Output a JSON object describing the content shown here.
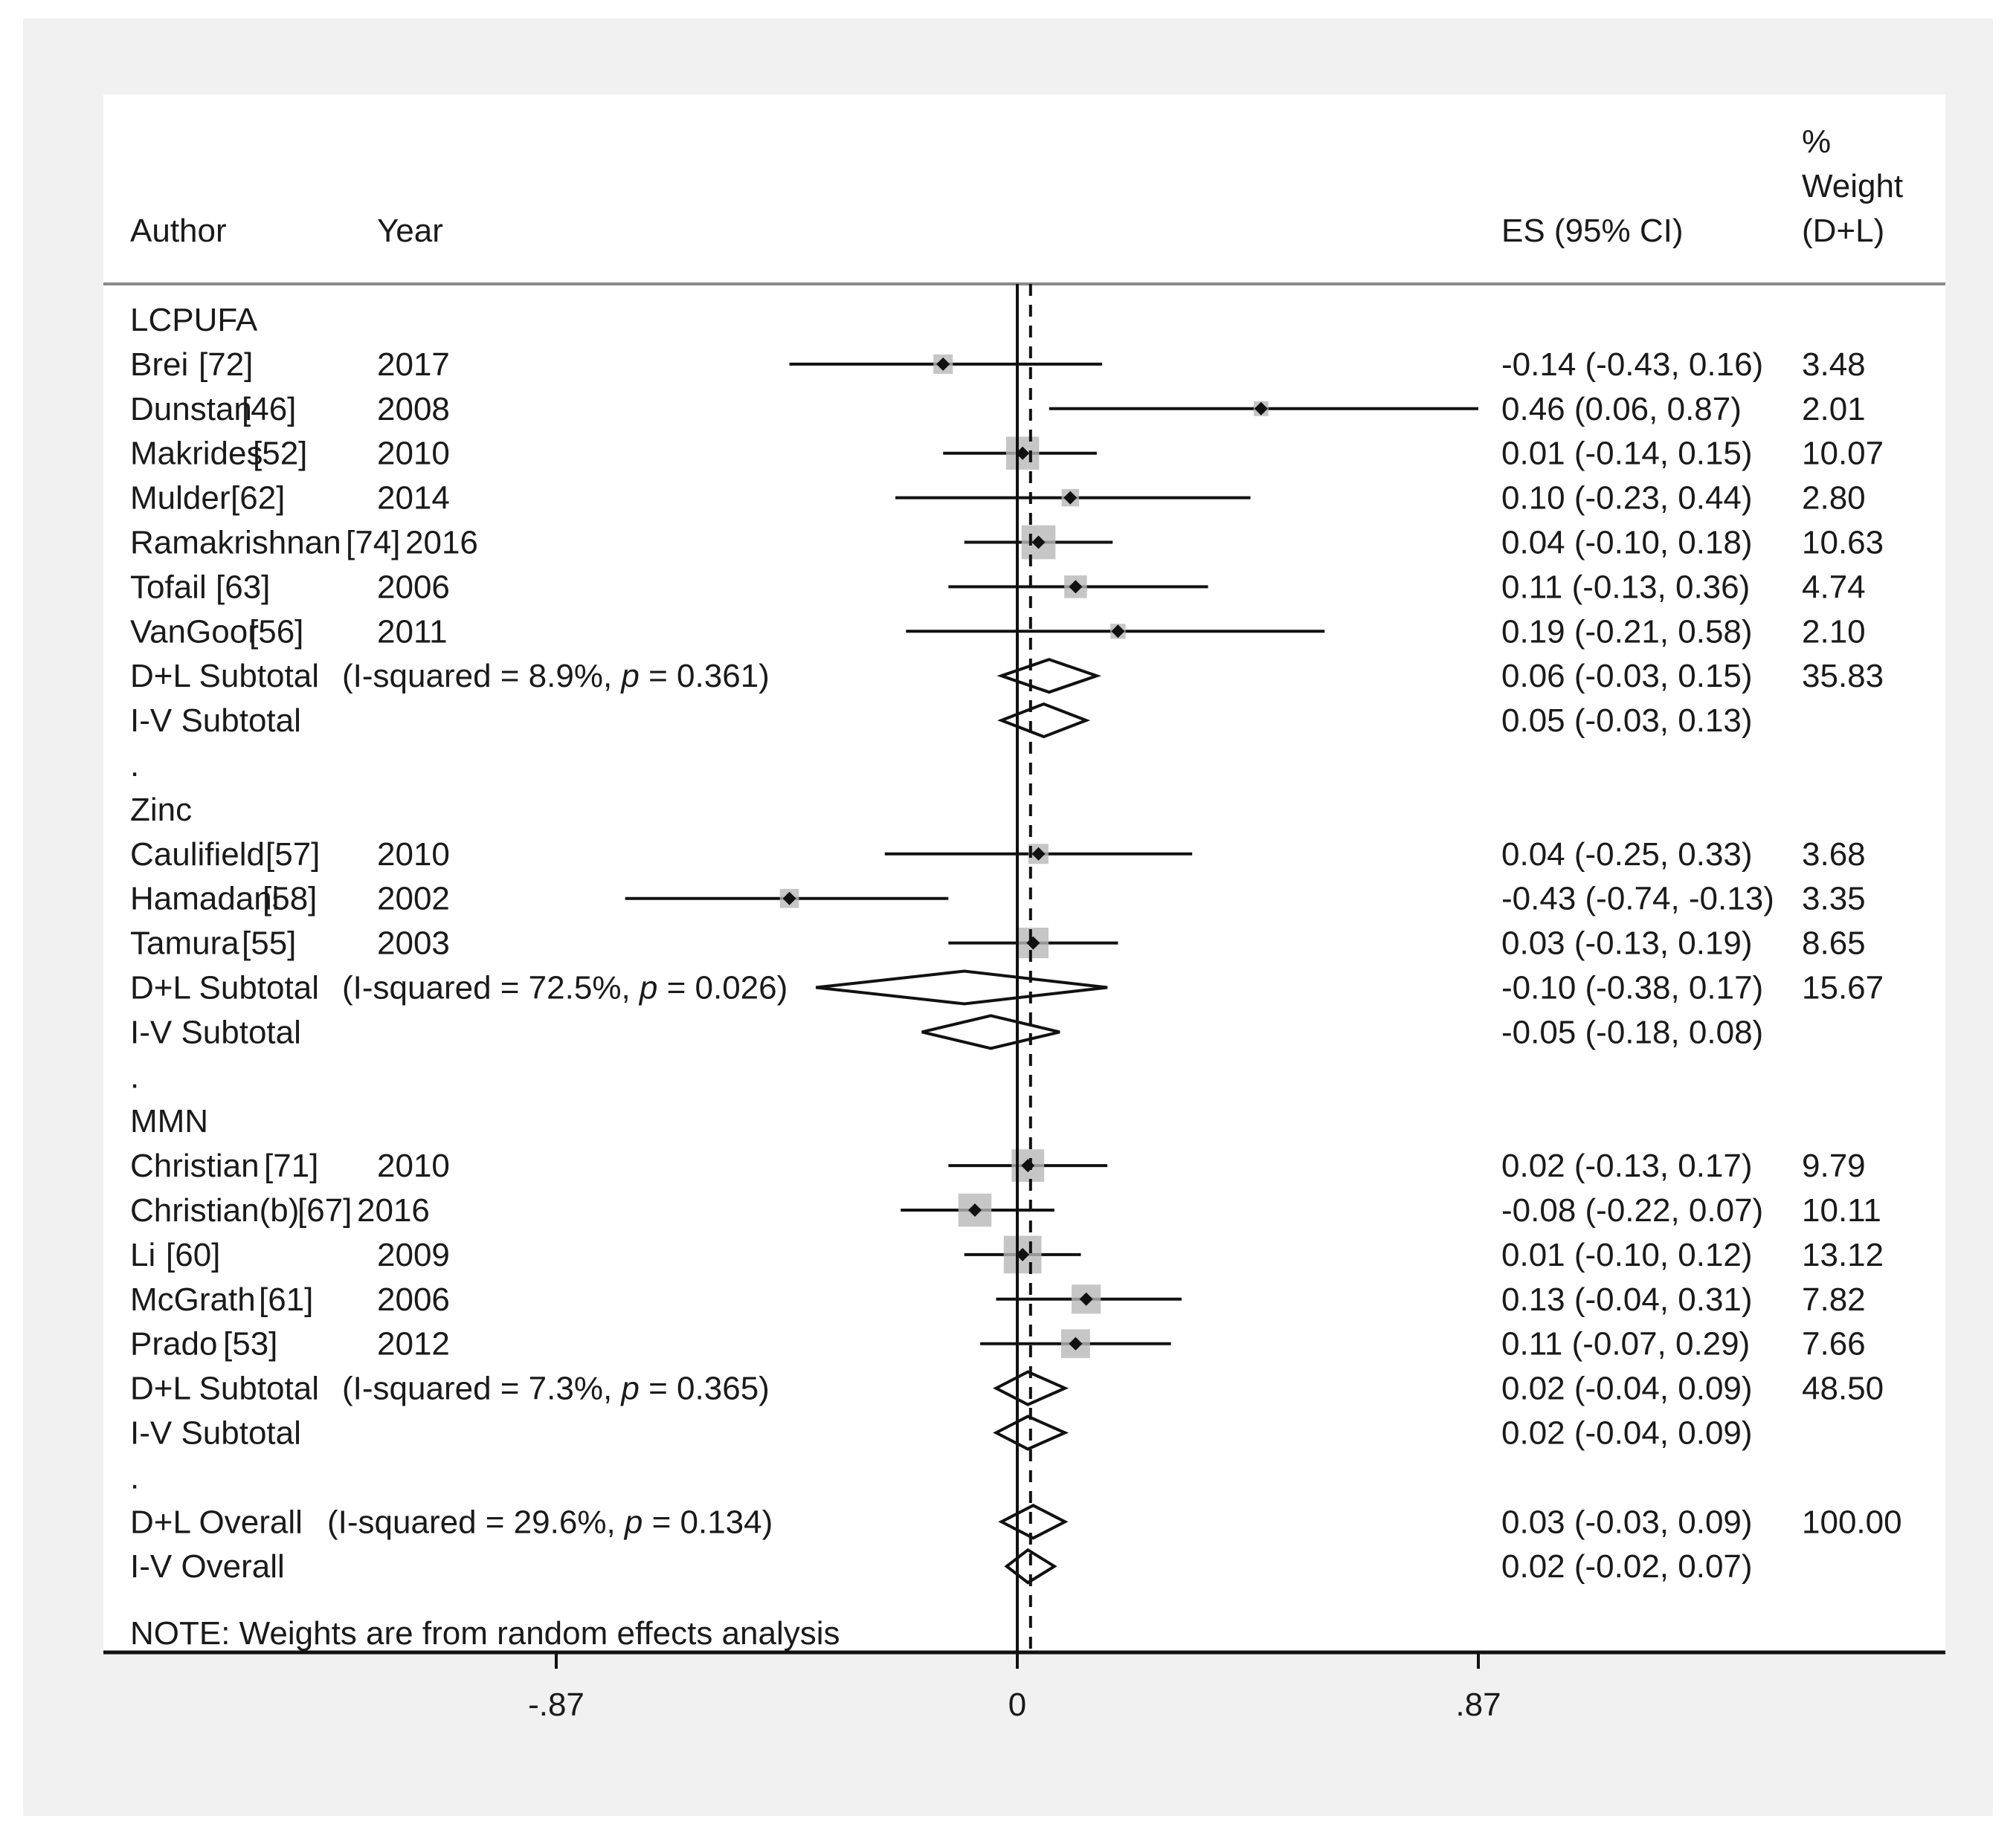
{
  "chart_data": {
    "type": "forest",
    "headers": {
      "author": "Author",
      "year": "Year",
      "es": "ES (95% CI)",
      "weight_lines": [
        "%",
        "Weight",
        "(D+L)"
      ]
    },
    "x_axis": {
      "range": [
        -0.87,
        0.87
      ],
      "ticks": [
        {
          "value": -0.87,
          "label": "-.87"
        },
        {
          "value": 0,
          "label": "0"
        },
        {
          "value": 0.87,
          "label": ".87"
        }
      ],
      "null_line": 0,
      "overall_line": 0.025
    },
    "rows": [
      {
        "type": "group",
        "label": "LCPUFA"
      },
      {
        "type": "study",
        "author": "Brei",
        "ref": "[72]",
        "year": "2017",
        "es": -0.14,
        "lo": -0.43,
        "hi": 0.16,
        "es_text": "-0.14 (-0.43, 0.16)",
        "weight": "3.48",
        "w": 3.48
      },
      {
        "type": "study",
        "author": "Dunstan",
        "ref": "[46]",
        "year": "2008",
        "es": 0.46,
        "lo": 0.06,
        "hi": 0.87,
        "es_text": "0.46 (0.06, 0.87)",
        "weight": "2.01",
        "w": 2.01
      },
      {
        "type": "study",
        "author": "Makrides",
        "ref": "[52]",
        "year": "2010",
        "es": 0.01,
        "lo": -0.14,
        "hi": 0.15,
        "es_text": "0.01 (-0.14, 0.15)",
        "weight": "10.07",
        "w": 10.07
      },
      {
        "type": "study",
        "author": "Mulder",
        "ref": "[62]",
        "year": "2014",
        "es": 0.1,
        "lo": -0.23,
        "hi": 0.44,
        "es_text": "0.10 (-0.23, 0.44)",
        "weight": "2.80",
        "w": 2.8
      },
      {
        "type": "study",
        "author": "Ramakrishnan",
        "ref": "[74]",
        "year": "2016",
        "es": 0.04,
        "lo": -0.1,
        "hi": 0.18,
        "es_text": "0.04 (-0.10, 0.18)",
        "weight": "10.63",
        "w": 10.63,
        "year_inline": true
      },
      {
        "type": "study",
        "author": "Tofail",
        "ref": "[63]",
        "year": "2006",
        "es": 0.11,
        "lo": -0.13,
        "hi": 0.36,
        "es_text": "0.11 (-0.13, 0.36)",
        "weight": "4.74",
        "w": 4.74
      },
      {
        "type": "study",
        "author": "VanGoor",
        "ref": "[56]",
        "year": "2011",
        "es": 0.19,
        "lo": -0.21,
        "hi": 0.58,
        "es_text": "0.19 (-0.21, 0.58)",
        "weight": "2.10",
        "w": 2.1
      },
      {
        "type": "subtotal",
        "label": "D+L Subtotal",
        "het_pre": "(I-squared = 8.9%, ",
        "het_p": "p",
        "het_post": " = 0.361)",
        "es": 0.06,
        "lo": -0.03,
        "hi": 0.15,
        "es_text": "0.06 (-0.03, 0.15)",
        "weight": "35.83"
      },
      {
        "type": "subtotal",
        "label": "I-V Subtotal",
        "es": 0.05,
        "lo": -0.03,
        "hi": 0.13,
        "es_text": "0.05 (-0.03, 0.13)",
        "weight": ""
      },
      {
        "type": "spacer",
        "label": "."
      },
      {
        "type": "group",
        "label": "Zinc"
      },
      {
        "type": "study",
        "author": "Caulifield",
        "ref": "[57]",
        "year": "2010",
        "es": 0.04,
        "lo": -0.25,
        "hi": 0.33,
        "es_text": "0.04 (-0.25, 0.33)",
        "weight": "3.68",
        "w": 3.68
      },
      {
        "type": "study",
        "author": "Hamadani",
        "ref": "[58]",
        "year": "2002",
        "es": -0.43,
        "lo": -0.74,
        "hi": -0.13,
        "es_text": "-0.43 (-0.74, -0.13)",
        "weight": "3.35",
        "w": 3.35
      },
      {
        "type": "study",
        "author": "Tamura",
        "ref": "[55]",
        "year": "2003",
        "es": 0.03,
        "lo": -0.13,
        "hi": 0.19,
        "es_text": "0.03 (-0.13, 0.19)",
        "weight": "8.65",
        "w": 8.65
      },
      {
        "type": "subtotal",
        "label": "D+L Subtotal",
        "het_pre": "(I-squared = 72.5%, ",
        "het_p": "p",
        "het_post": " = 0.026)",
        "es": -0.1,
        "lo": -0.38,
        "hi": 0.17,
        "es_text": "-0.10 (-0.38, 0.17)",
        "weight": "15.67"
      },
      {
        "type": "subtotal",
        "label": "I-V Subtotal",
        "es": -0.05,
        "lo": -0.18,
        "hi": 0.08,
        "es_text": "-0.05 (-0.18, 0.08)",
        "weight": ""
      },
      {
        "type": "spacer",
        "label": "."
      },
      {
        "type": "group",
        "label": "MMN"
      },
      {
        "type": "study",
        "author": "Christian",
        "ref": "[71]",
        "year": "2010",
        "es": 0.02,
        "lo": -0.13,
        "hi": 0.17,
        "es_text": "0.02 (-0.13, 0.17)",
        "weight": "9.79",
        "w": 9.79
      },
      {
        "type": "study",
        "author": "Christian(b)",
        "ref": "[67]",
        "year": "2016",
        "es": -0.08,
        "lo": -0.22,
        "hi": 0.07,
        "es_text": "-0.08 (-0.22, 0.07)",
        "weight": "10.11",
        "w": 10.11,
        "year_inline": true
      },
      {
        "type": "study",
        "author": "Li",
        "ref": "[60]",
        "year": "2009",
        "es": 0.01,
        "lo": -0.1,
        "hi": 0.12,
        "es_text": "0.01 (-0.10, 0.12)",
        "weight": "13.12",
        "w": 13.12
      },
      {
        "type": "study",
        "author": "McGrath",
        "ref": "[61]",
        "year": "2006",
        "es": 0.13,
        "lo": -0.04,
        "hi": 0.31,
        "es_text": "0.13 (-0.04, 0.31)",
        "weight": "7.82",
        "w": 7.82
      },
      {
        "type": "study",
        "author": "Prado",
        "ref": "[53]",
        "year": "2012",
        "es": 0.11,
        "lo": -0.07,
        "hi": 0.29,
        "es_text": "0.11 (-0.07, 0.29)",
        "weight": "7.66",
        "w": 7.66
      },
      {
        "type": "subtotal",
        "label": "D+L Subtotal",
        "het_pre": "(I-squared = 7.3%, ",
        "het_p": "p",
        "het_post": " = 0.365)",
        "es": 0.02,
        "lo": -0.04,
        "hi": 0.09,
        "es_text": "0.02 (-0.04, 0.09)",
        "weight": "48.50"
      },
      {
        "type": "subtotal",
        "label": "I-V Subtotal",
        "es": 0.02,
        "lo": -0.04,
        "hi": 0.09,
        "es_text": "0.02 (-0.04, 0.09)",
        "weight": ""
      },
      {
        "type": "spacer",
        "label": "."
      },
      {
        "type": "subtotal",
        "label": "D+L Overall",
        "het_pre": "(I-squared = 29.6%, ",
        "het_p": "p",
        "het_post": " = 0.134)",
        "es": 0.03,
        "lo": -0.03,
        "hi": 0.09,
        "es_text": "0.03 (-0.03, 0.09)",
        "weight": "100.00"
      },
      {
        "type": "subtotal",
        "label": "I-V Overall",
        "es": 0.02,
        "lo": -0.02,
        "hi": 0.07,
        "es_text": "0.02 (-0.02, 0.07)",
        "weight": ""
      }
    ],
    "note": "NOTE: Weights are from random effects analysis"
  }
}
